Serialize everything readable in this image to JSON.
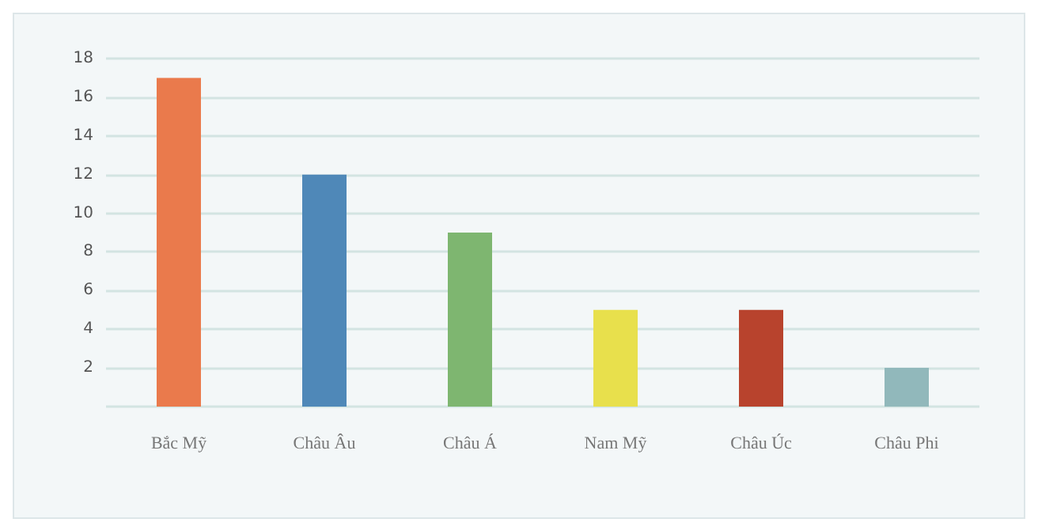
{
  "chart_data": {
    "type": "bar",
    "categories": [
      "Bắc Mỹ",
      "Châu Âu",
      "Châu Á",
      "Nam Mỹ",
      "Châu Úc",
      "Châu Phi"
    ],
    "values": [
      17,
      12,
      9,
      5,
      5,
      2
    ],
    "colors": [
      "#ea7a4c",
      "#4f88b8",
      "#7eb670",
      "#e8e04c",
      "#b8432d",
      "#91b8bb"
    ],
    "ylim": [
      0,
      18
    ],
    "yticks": [
      {
        "value": 0,
        "label": null
      },
      2,
      4,
      6,
      8,
      10,
      12,
      14,
      16,
      18
    ],
    "grid": "y"
  }
}
